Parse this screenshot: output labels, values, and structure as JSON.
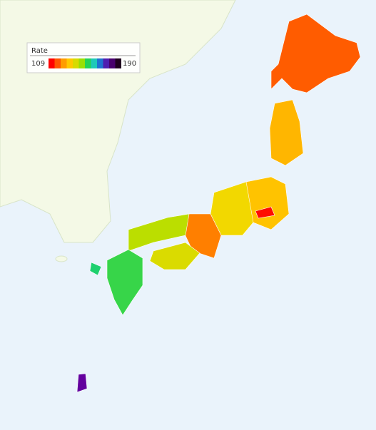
{
  "legend": {
    "title": "Rate",
    "min": 109,
    "max": 190
  },
  "regions": {
    "values": [
      117,
      128,
      130,
      110,
      135,
      120,
      142,
      138,
      152,
      155,
      178
    ]
  }
}
